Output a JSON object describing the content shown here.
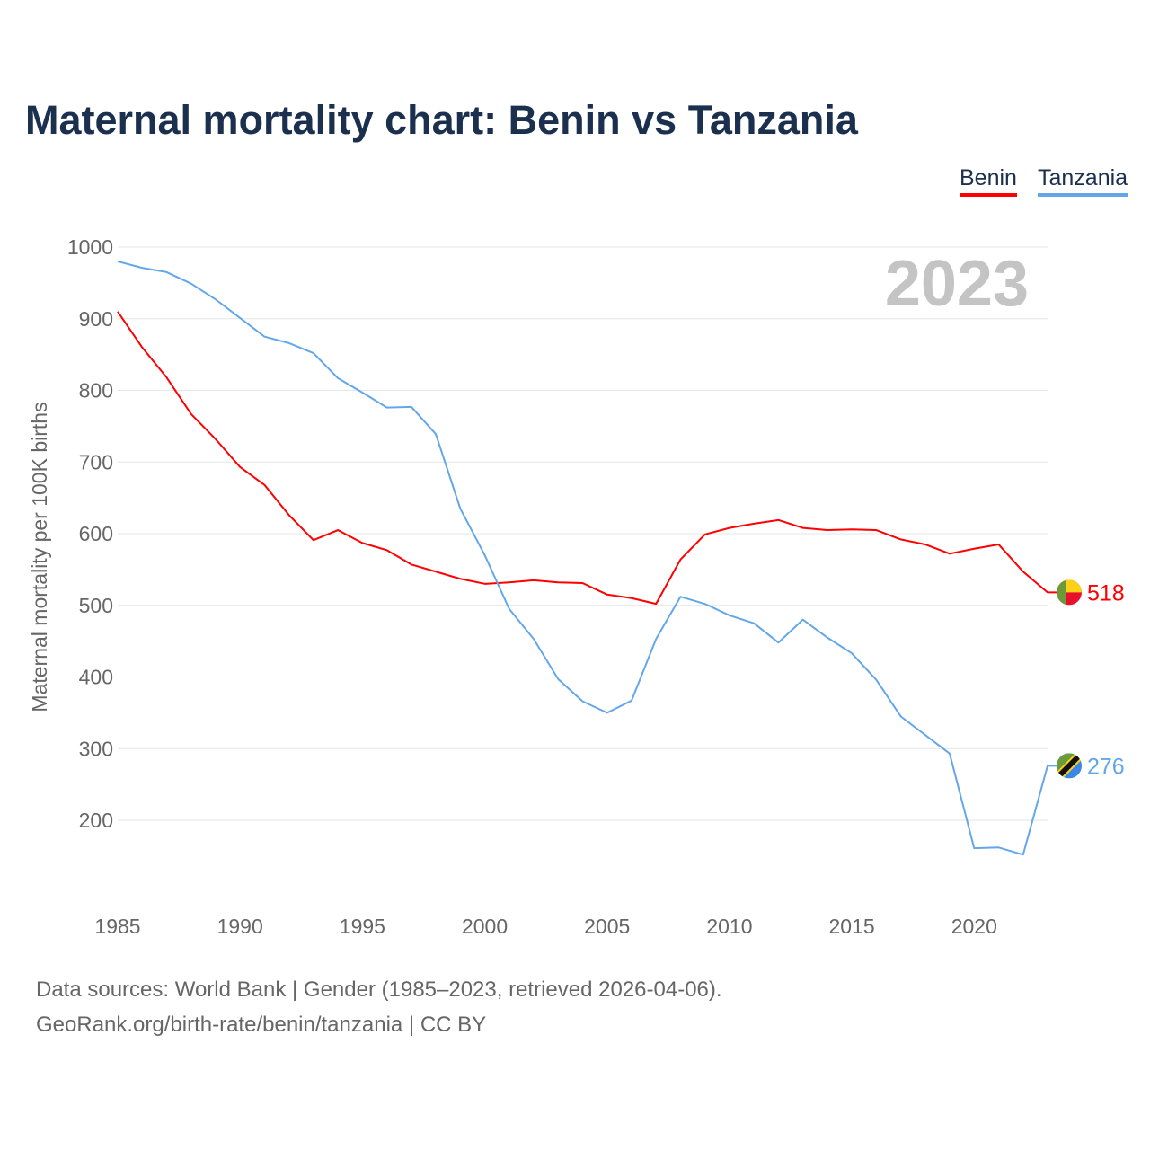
{
  "chart_data": {
    "type": "line",
    "title": "Maternal mortality chart: Benin vs Tanzania",
    "ylabel": "Maternal mortality per 100K births",
    "xlabel": "",
    "year_label": "2023",
    "ylim": [
      100,
      1000
    ],
    "xlim": [
      1985,
      2023
    ],
    "yticks": [
      200,
      300,
      400,
      500,
      600,
      700,
      800,
      900,
      1000
    ],
    "xticks": [
      1985,
      1990,
      1995,
      2000,
      2005,
      2010,
      2015,
      2020
    ],
    "grid": true,
    "legend_position": "top-right",
    "x": [
      1985,
      1986,
      1987,
      1988,
      1989,
      1990,
      1991,
      1992,
      1993,
      1994,
      1995,
      1996,
      1997,
      1998,
      1999,
      2000,
      2001,
      2002,
      2003,
      2004,
      2005,
      2006,
      2007,
      2008,
      2009,
      2010,
      2011,
      2012,
      2013,
      2014,
      2015,
      2016,
      2017,
      2018,
      2019,
      2020,
      2021,
      2022,
      2023
    ],
    "series": [
      {
        "name": "Benin",
        "color": "#ff0000",
        "end_label": "518",
        "values": [
          910,
          860,
          818,
          767,
          732,
          693,
          668,
          626,
          591,
          605,
          587,
          577,
          557,
          547,
          537,
          530,
          532,
          535,
          532,
          531,
          515,
          510,
          502,
          564,
          599,
          608,
          614,
          619,
          608,
          605,
          606,
          605,
          592,
          585,
          572,
          579,
          585,
          547,
          518
        ]
      },
      {
        "name": "Tanzania",
        "color": "#63a7ea",
        "end_label": "276",
        "values": [
          980,
          971,
          965,
          949,
          927,
          901,
          875,
          866,
          852,
          817,
          797,
          776,
          777,
          739,
          635,
          570,
          495,
          453,
          397,
          366,
          350,
          367,
          453,
          512,
          502,
          486,
          475,
          448,
          480,
          455,
          433,
          396,
          345,
          319,
          293,
          161,
          162,
          152,
          276
        ]
      }
    ]
  },
  "footer": {
    "source": "Data sources: World Bank | Gender (1985–2023, retrieved 2026-04-06).",
    "credit": "GeoRank.org/birth-rate/benin/tanzania | CC BY"
  }
}
